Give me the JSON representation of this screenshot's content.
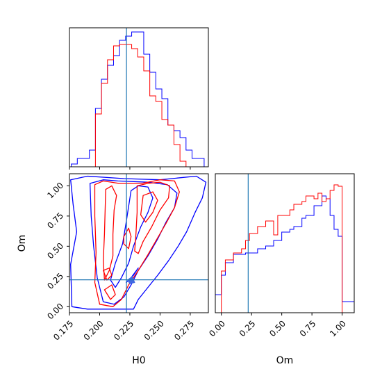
{
  "chart_data": {
    "type": "corner",
    "parameters": [
      "H0",
      "Om"
    ],
    "truth": {
      "H0": 0.2222,
      "Om": 0.2222
    },
    "colors": {
      "series_a": "#0000ff",
      "series_b": "#ff0000",
      "truth": "#1f77b4"
    },
    "panels": [
      {
        "id": "hist-H0",
        "type": "step-histogram",
        "xlim": [
          0.175,
          0.29
        ],
        "xticks": [
          0.175,
          0.2,
          0.225,
          0.25,
          0.275
        ],
        "xtick_labels_shown": false,
        "bin_edges": [
          0.1765,
          0.1815,
          0.1865,
          0.1915,
          0.1965,
          0.2015,
          0.2065,
          0.2115,
          0.2165,
          0.2215,
          0.2265,
          0.2315,
          0.2365,
          0.2415,
          0.2465,
          0.2515,
          0.2565,
          0.2615,
          0.2665,
          0.2715,
          0.2765,
          0.2815,
          0.2865
        ],
        "series": [
          {
            "color": "#0000ff",
            "values": [
              0.02,
              0.06,
              0.06,
              0.12,
              0.42,
              0.63,
              0.73,
              0.8,
              0.91,
              0.94,
              0.97,
              0.97,
              0.81,
              0.68,
              0.56,
              0.49,
              0.3,
              0.26,
              0.21,
              0.12,
              0.06,
              0.06
            ]
          },
          {
            "color": "#ff0000",
            "values": [
              0.0,
              0.0,
              0.0,
              0.0,
              0.38,
              0.6,
              0.77,
              0.87,
              0.88,
              0.88,
              0.85,
              0.79,
              0.69,
              0.51,
              0.47,
              0.34,
              0.3,
              0.16,
              0.04,
              0.0,
              0.0,
              0.0
            ]
          }
        ]
      },
      {
        "id": "scatter-H0-Om",
        "type": "contour",
        "xlim": [
          0.175,
          0.29
        ],
        "ylim": [
          -0.05,
          1.1
        ],
        "xticks": [
          0.175,
          0.2,
          0.225,
          0.25,
          0.275
        ],
        "yticks": [
          0.0,
          0.25,
          0.5,
          0.75,
          1.0
        ],
        "xtick_labels": [
          "0.175",
          "0.200",
          "0.225",
          "0.250",
          "0.275"
        ],
        "ytick_labels": [
          "0.00",
          "0.25",
          "0.50",
          "0.75",
          "1.00"
        ],
        "xlabel": "H0",
        "ylabel": "Om",
        "contours": [
          {
            "color": "#0000ff",
            "points": [
              [
                0.176,
                1.05
              ],
              [
                0.19,
                1.08
              ],
              [
                0.22,
                1.06
              ],
              [
                0.25,
                1.05
              ],
              [
                0.27,
                1.07
              ],
              [
                0.28,
                1.08
              ],
              [
                0.288,
                1.03
              ],
              [
                0.285,
                0.9
              ],
              [
                0.279,
                0.78
              ],
              [
                0.272,
                0.62
              ],
              [
                0.265,
                0.5
              ],
              [
                0.257,
                0.38
              ],
              [
                0.248,
                0.26
              ],
              [
                0.24,
                0.16
              ],
              [
                0.232,
                0.06
              ],
              [
                0.228,
                -0.02
              ],
              [
                0.21,
                -0.02
              ],
              [
                0.19,
                -0.02
              ],
              [
                0.177,
                0.0
              ],
              [
                0.176,
                0.35
              ],
              [
                0.181,
                0.62
              ],
              [
                0.178,
                0.85
              ],
              [
                0.176,
                1.05
              ]
            ]
          },
          {
            "color": "#0000ff",
            "points": [
              [
                0.192,
                1.02
              ],
              [
                0.203,
                1.05
              ],
              [
                0.215,
                1.04
              ],
              [
                0.24,
                1.03
              ],
              [
                0.256,
                1.01
              ],
              [
                0.264,
                0.94
              ],
              [
                0.262,
                0.82
              ],
              [
                0.255,
                0.7
              ],
              [
                0.248,
                0.56
              ],
              [
                0.24,
                0.42
              ],
              [
                0.232,
                0.3
              ],
              [
                0.226,
                0.18
              ],
              [
                0.22,
                0.08
              ],
              [
                0.212,
                0.02
              ],
              [
                0.203,
                0.04
              ],
              [
                0.198,
                0.24
              ],
              [
                0.195,
                0.5
              ],
              [
                0.193,
                0.75
              ],
              [
                0.192,
                1.02
              ]
            ]
          },
          {
            "color": "#0000ff",
            "points": [
              [
                0.226,
                0.96
              ],
              [
                0.232,
                1.0
              ],
              [
                0.24,
                0.99
              ],
              [
                0.244,
                0.9
              ],
              [
                0.24,
                0.78
              ],
              [
                0.234,
                0.66
              ],
              [
                0.228,
                0.5
              ],
              [
                0.224,
                0.36
              ],
              [
                0.218,
                0.24
              ],
              [
                0.213,
                0.16
              ],
              [
                0.209,
                0.22
              ],
              [
                0.213,
                0.36
              ],
              [
                0.219,
                0.52
              ],
              [
                0.222,
                0.7
              ],
              [
                0.226,
                0.96
              ]
            ]
          },
          {
            "color": "#0000ff",
            "points": [
              [
                0.222,
                0.2
              ],
              [
                0.228,
                0.26
              ],
              [
                0.232,
                0.32
              ],
              [
                0.226,
                0.24
              ],
              [
                0.222,
                0.2
              ]
            ]
          },
          {
            "color": "#ff0000",
            "points": [
              [
                0.196,
                1.01
              ],
              [
                0.203,
                1.04
              ],
              [
                0.216,
                1.02
              ],
              [
                0.235,
                1.02
              ],
              [
                0.25,
                1.05
              ],
              [
                0.262,
                1.04
              ],
              [
                0.266,
                0.95
              ],
              [
                0.262,
                0.82
              ],
              [
                0.255,
                0.69
              ],
              [
                0.248,
                0.57
              ],
              [
                0.24,
                0.43
              ],
              [
                0.232,
                0.3
              ],
              [
                0.224,
                0.18
              ],
              [
                0.218,
                0.06
              ],
              [
                0.211,
                0.0
              ],
              [
                0.2,
                0.02
              ],
              [
                0.196,
                0.2
              ],
              [
                0.197,
                0.45
              ],
              [
                0.196,
                0.75
              ],
              [
                0.196,
                1.01
              ]
            ]
          },
          {
            "color": "#ff0000",
            "points": [
              [
                0.205,
                0.97
              ],
              [
                0.21,
                1.0
              ],
              [
                0.214,
                0.92
              ],
              [
                0.212,
                0.8
              ],
              [
                0.211,
                0.6
              ],
              [
                0.211,
                0.42
              ],
              [
                0.208,
                0.3
              ],
              [
                0.204,
                0.22
              ],
              [
                0.203,
                0.38
              ],
              [
                0.204,
                0.6
              ],
              [
                0.205,
                0.97
              ]
            ]
          },
          {
            "color": "#ff0000",
            "points": [
              [
                0.231,
                1.0
              ],
              [
                0.24,
                1.02
              ],
              [
                0.25,
                1.03
              ],
              [
                0.258,
                1.0
              ],
              [
                0.257,
                0.9
              ],
              [
                0.25,
                0.8
              ],
              [
                0.243,
                0.66
              ],
              [
                0.236,
                0.54
              ],
              [
                0.232,
                0.44
              ],
              [
                0.229,
                0.46
              ],
              [
                0.23,
                0.6
              ],
              [
                0.231,
                0.78
              ],
              [
                0.231,
                1.0
              ]
            ]
          },
          {
            "color": "#ff0000",
            "points": [
              [
                0.236,
                0.92
              ],
              [
                0.244,
                0.95
              ],
              [
                0.248,
                0.88
              ],
              [
                0.244,
                0.78
              ],
              [
                0.238,
                0.7
              ],
              [
                0.234,
                0.76
              ],
              [
                0.236,
                0.92
              ]
            ]
          },
          {
            "color": "#ff0000",
            "points": [
              [
                0.22,
                0.58
              ],
              [
                0.224,
                0.65
              ],
              [
                0.226,
                0.58
              ],
              [
                0.224,
                0.48
              ],
              [
                0.22,
                0.52
              ],
              [
                0.22,
                0.58
              ]
            ]
          },
          {
            "color": "#ff0000",
            "points": [
              [
                0.203,
                0.3
              ],
              [
                0.208,
                0.32
              ],
              [
                0.21,
                0.26
              ],
              [
                0.206,
                0.22
              ],
              [
                0.203,
                0.3
              ]
            ]
          },
          {
            "color": "#ff0000",
            "points": [
              [
                0.204,
                0.14
              ],
              [
                0.21,
                0.18
              ],
              [
                0.213,
                0.1
              ],
              [
                0.209,
                0.06
              ],
              [
                0.204,
                0.14
              ]
            ]
          }
        ],
        "filled_region": {
          "color": "#4169e1",
          "points": [
            [
              0.223,
              0.22
            ],
            [
              0.227,
              0.25
            ],
            [
              0.229,
              0.2
            ],
            [
              0.225,
              0.19
            ],
            [
              0.223,
              0.22
            ]
          ]
        }
      },
      {
        "id": "hist-Om",
        "type": "step-histogram",
        "xlim": [
          -0.05,
          1.1
        ],
        "xticks": [
          0.0,
          0.25,
          0.5,
          0.75,
          1.0
        ],
        "xtick_labels": [
          "0.00",
          "0.25",
          "0.50",
          "0.75",
          "1.00"
        ],
        "xlabel": "Om",
        "bin_edges": [
          -0.05,
          0.0,
          0.033,
          0.067,
          0.1,
          0.133,
          0.167,
          0.2,
          0.233,
          0.267,
          0.3,
          0.333,
          0.367,
          0.4,
          0.433,
          0.467,
          0.5,
          0.533,
          0.567,
          0.6,
          0.633,
          0.667,
          0.7,
          0.733,
          0.767,
          0.8,
          0.833,
          0.867,
          0.9,
          0.933,
          0.967,
          1.0,
          1.05,
          1.1
        ],
        "series": [
          {
            "color": "#0000ff",
            "values": [
              0.13,
              0.27,
              0.36,
              0.36,
              0.42,
              0.42,
              0.42,
              0.43,
              0.43,
              0.43,
              0.46,
              0.46,
              0.48,
              0.48,
              0.52,
              0.52,
              0.58,
              0.58,
              0.6,
              0.62,
              0.62,
              0.68,
              0.7,
              0.7,
              0.77,
              0.77,
              0.84,
              0.82,
              0.7,
              0.6,
              0.55,
              0.08,
              0.08
            ]
          },
          {
            "color": "#ff0000",
            "values": [
              0.0,
              0.3,
              0.38,
              0.38,
              0.43,
              0.43,
              0.46,
              0.52,
              0.57,
              0.57,
              0.62,
              0.62,
              0.66,
              0.66,
              0.56,
              0.7,
              0.7,
              0.7,
              0.74,
              0.78,
              0.78,
              0.8,
              0.84,
              0.84,
              0.82,
              0.86,
              0.8,
              0.82,
              0.88,
              0.92,
              0.91,
              0.0,
              0.0
            ]
          }
        ]
      }
    ]
  }
}
